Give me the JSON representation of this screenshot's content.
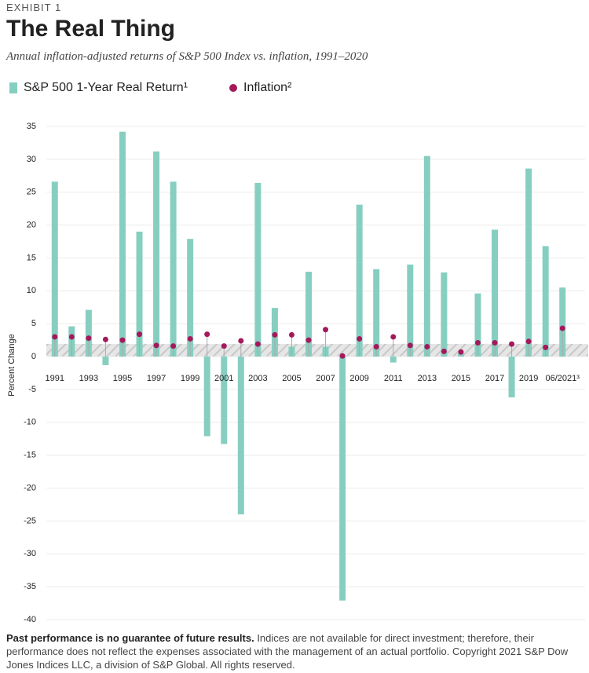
{
  "header": "EXHIBIT 1",
  "chart_data": {
    "type": "bar",
    "title": "The Real Thing",
    "subtitle": "Annual inflation-adjusted returns of S&P 500 Index vs. inflation, 1991–2020",
    "y_label": "Percent Change",
    "categories": [
      "1991",
      null,
      "1993",
      null,
      "1995",
      null,
      "1997",
      null,
      "1999",
      null,
      "2001",
      null,
      "2003",
      null,
      "2005",
      null,
      "2007",
      null,
      "2009",
      null,
      "2011",
      null,
      "2013",
      null,
      "2015",
      null,
      "2017",
      null,
      "2019",
      null,
      "06/2021³"
    ],
    "series": [
      {
        "name": "S&P 500 1-Year Real Return¹",
        "type": "bar",
        "color": "#86cfc0",
        "values": [
          26.6,
          4.6,
          7.1,
          -1.3,
          34.2,
          19.0,
          31.2,
          26.6,
          17.9,
          -12.1,
          -13.3,
          -24.0,
          26.4,
          7.4,
          1.5,
          12.9,
          1.5,
          -37.1,
          23.1,
          13.3,
          -0.9,
          14.0,
          30.5,
          12.8,
          0.5,
          9.6,
          19.3,
          -6.2,
          28.6,
          16.8,
          10.5
        ]
      },
      {
        "name": "Inflation²",
        "type": "scatter",
        "color": "#a3195b",
        "values": [
          3.0,
          3.0,
          2.8,
          2.6,
          2.5,
          3.4,
          1.7,
          1.6,
          2.7,
          3.4,
          1.6,
          2.4,
          1.9,
          3.3,
          3.3,
          2.5,
          4.1,
          0.1,
          2.7,
          1.5,
          3.0,
          1.7,
          1.5,
          0.8,
          0.7,
          2.1,
          2.1,
          1.9,
          2.3,
          1.4,
          4.3
        ]
      }
    ],
    "ylim": [
      -40,
      35
    ],
    "yticks": [
      35,
      30,
      25,
      20,
      15,
      10,
      5,
      0,
      -5,
      -10,
      -15,
      -20,
      -25,
      -30,
      -35,
      -40
    ],
    "grid": true
  },
  "footer": {
    "bold": "Past performance is no guarantee of future results.",
    "text": " Indices are not available for direct investment; therefore, their performance does not reflect the expenses associated with the management of an actual portfolio. Copyright 2021 S&P Dow Jones Indices LLC, a division of S&P Global. All rights reserved."
  }
}
